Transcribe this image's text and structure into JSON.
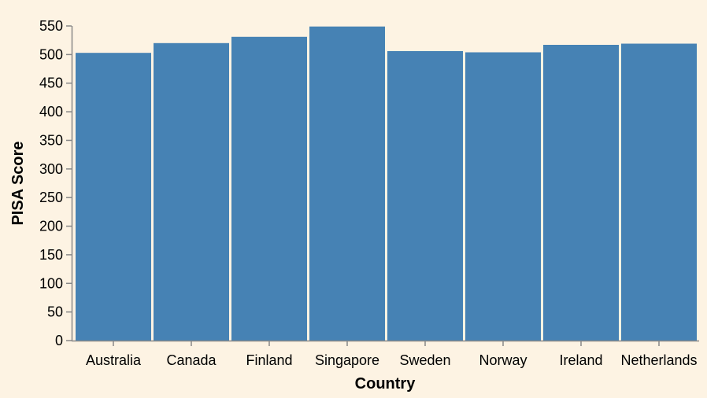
{
  "chart_data": {
    "type": "bar",
    "categories": [
      "Australia",
      "Canada",
      "Finland",
      "Singapore",
      "Sweden",
      "Norway",
      "Ireland",
      "Netherlands"
    ],
    "values": [
      503,
      520,
      531,
      549,
      506,
      504,
      517,
      519
    ],
    "xlabel": "Country",
    "ylabel": "PISA Score",
    "ylim": [
      0,
      550
    ],
    "yticks": [
      0,
      50,
      100,
      150,
      200,
      250,
      300,
      350,
      400,
      450,
      500,
      550
    ],
    "grid": false,
    "colors": {
      "bar": "#4682b4",
      "background": "#fdf3e3",
      "axis": "#888888"
    }
  }
}
